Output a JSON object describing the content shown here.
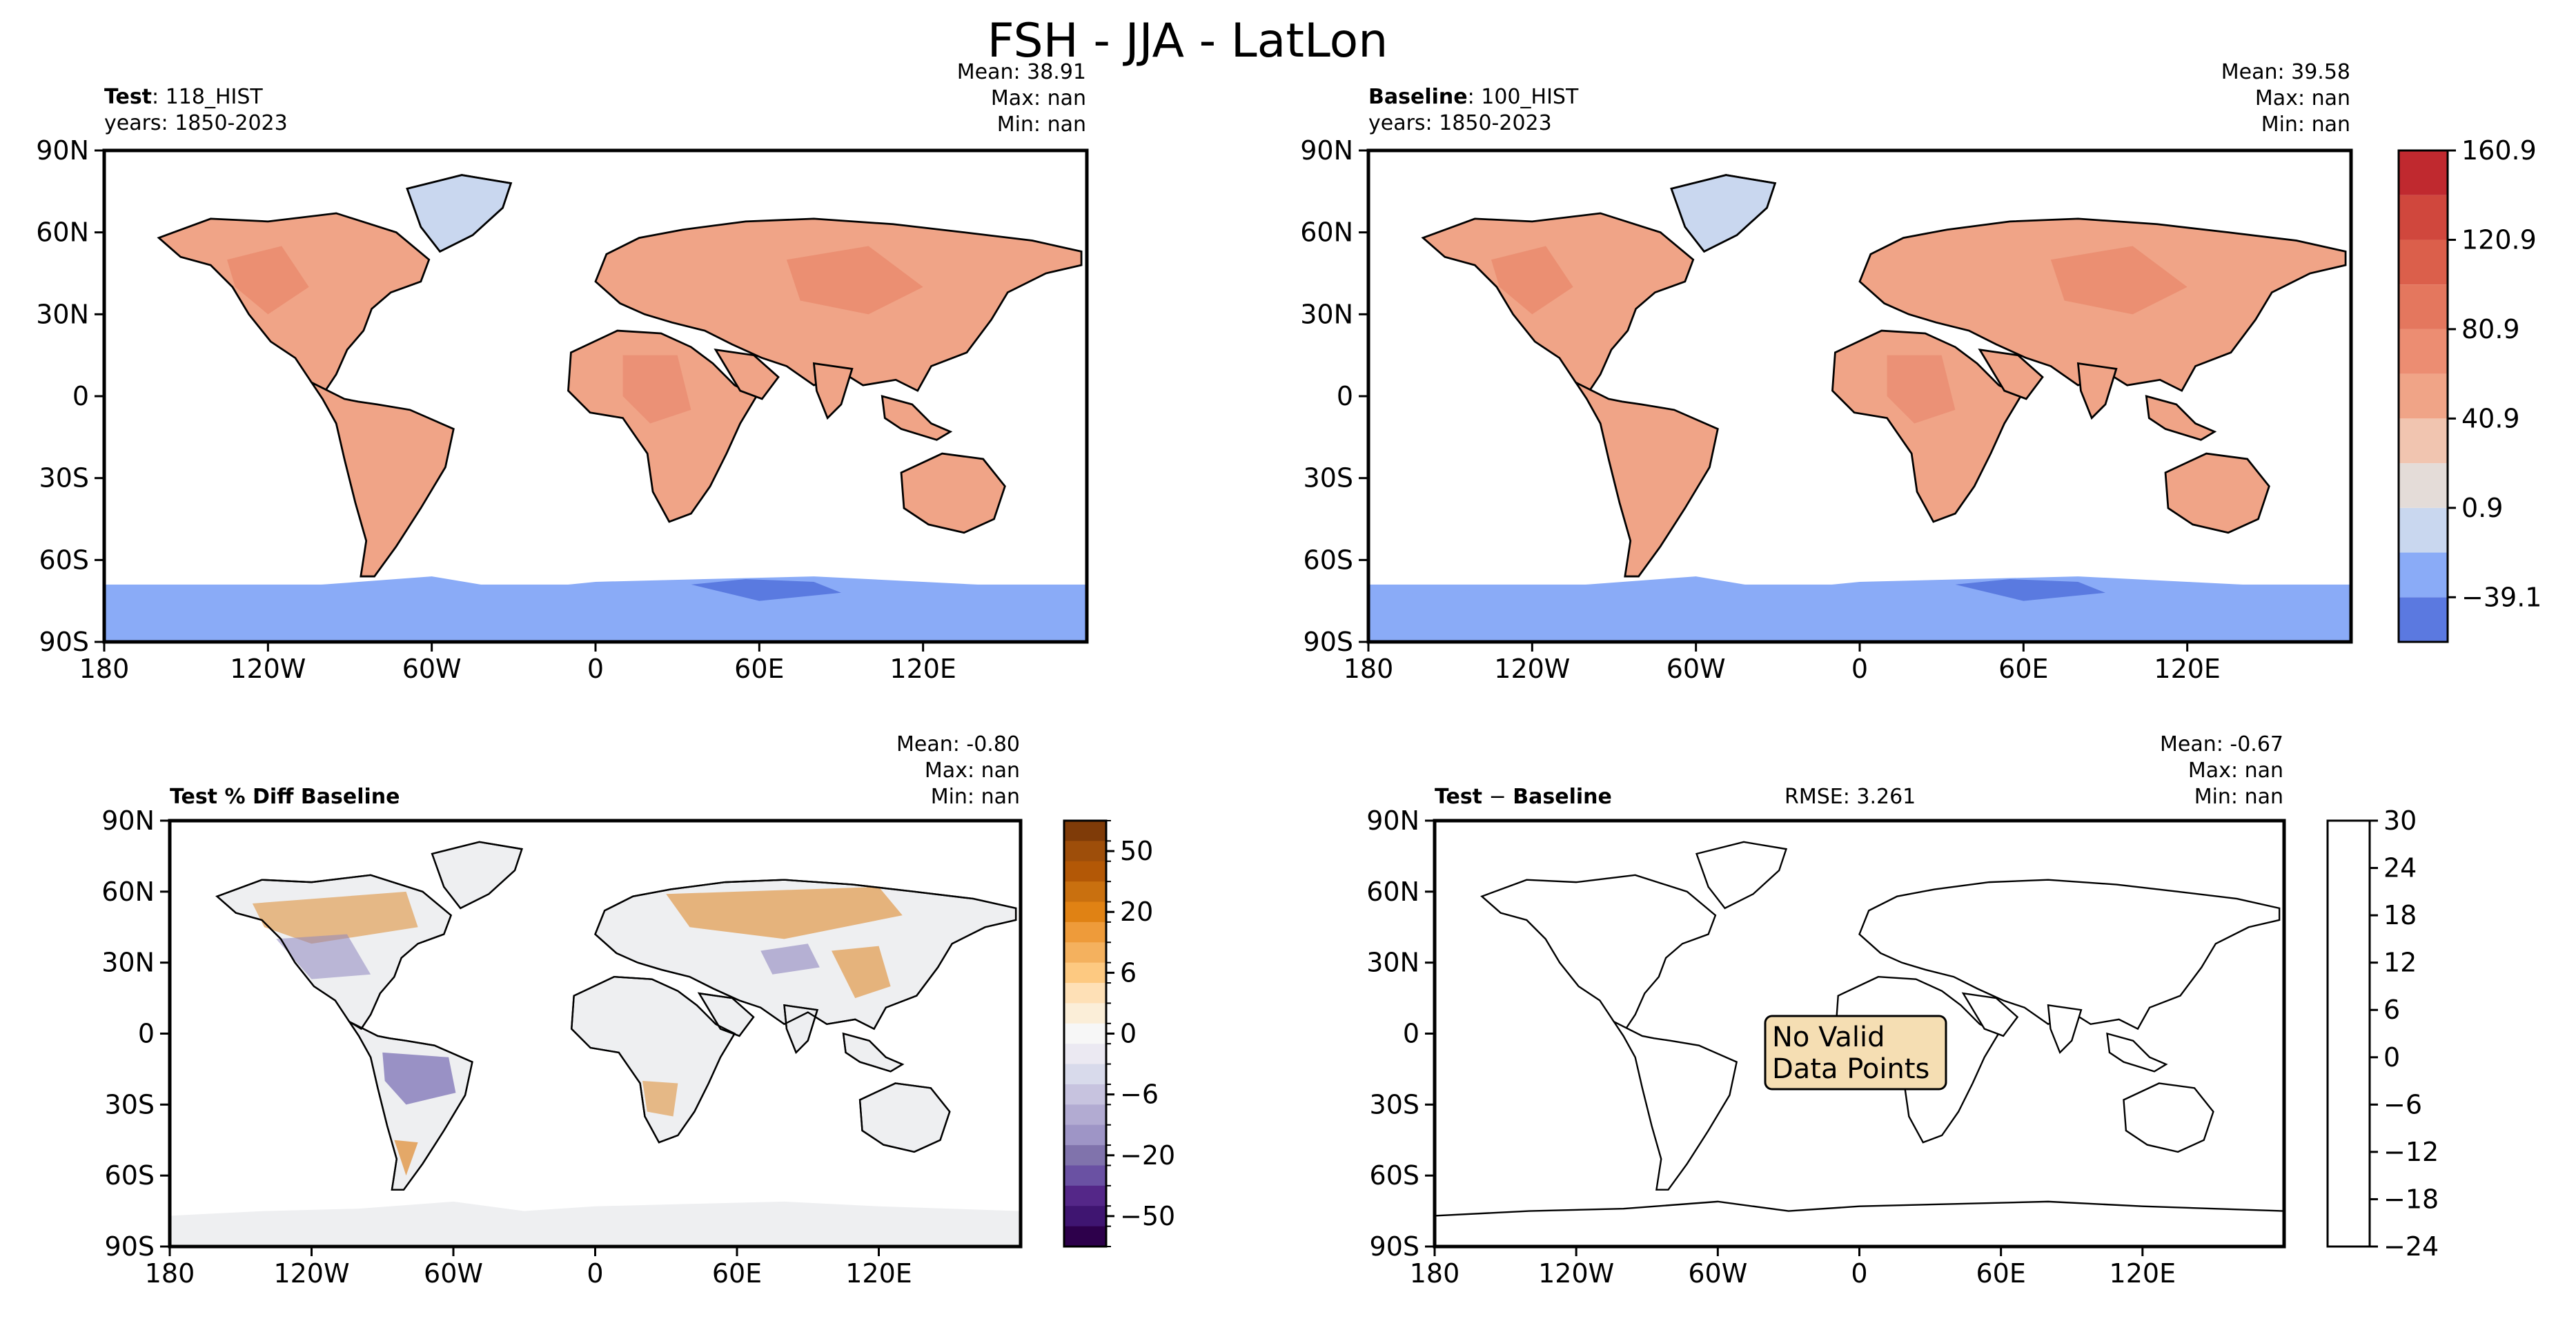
{
  "title": "FSH - JJA - LatLon",
  "x_ticks": [
    "180",
    "120W",
    "60W",
    "0",
    "60E",
    "120E"
  ],
  "y_ticks": [
    "90N",
    "60N",
    "30N",
    "0",
    "30S",
    "60S",
    "90S"
  ],
  "colors": {
    "ocean": "#ffffff",
    "coast": "#000000",
    "land_flux": "#f0a487",
    "land_flux_deep": "#e8866a",
    "greenland": "#c9d7ef",
    "antarctica": "#8aabf7",
    "antarctica_deep": "#5a7ae0",
    "diff_base": "#eeeff1",
    "diff_orange": "#df8a2e",
    "diff_purple": "#8f86c0",
    "nodata_box": "#f5deb3"
  },
  "panels": {
    "test": {
      "label_bold": "Test",
      "label_value": "118_HIST",
      "years": "years: 1850-2023",
      "mean": "Mean: 38.91",
      "max": "Max:   nan",
      "min": "Min:   nan"
    },
    "baseline": {
      "label_bold": "Baseline",
      "label_value": "100_HIST",
      "years": "years: 1850-2023",
      "mean": "Mean: 39.58",
      "max": "Max:   nan",
      "min": "Min:   nan"
    },
    "pct_diff": {
      "label": "Test % Diff Baseline",
      "mean": "Mean: -0.80",
      "max": "Max:   nan",
      "min": "Min:   nan"
    },
    "diff": {
      "label_bold_a": "Test",
      "label_sep": " − ",
      "label_bold_b": "Baseline",
      "rmse": "RMSE: 3.261",
      "mean": "Mean: -0.67",
      "max": "Max:   nan",
      "min": "Min:   nan",
      "no_data_line1": "No Valid",
      "no_data_line2": "Data Points"
    }
  },
  "chart_data": [
    {
      "type": "heatmap",
      "panel": "test",
      "title": "Test: 118_HIST",
      "x_ticks": [
        "180",
        "120W",
        "60W",
        "0",
        "60E",
        "120E"
      ],
      "y_ticks": [
        "90N",
        "60N",
        "30N",
        "0",
        "30S",
        "60S",
        "90S"
      ],
      "xlim": [
        -180,
        180
      ],
      "ylim": [
        -90,
        90
      ],
      "colorbar": "shared with baseline"
    },
    {
      "type": "heatmap",
      "panel": "baseline",
      "title": "Baseline: 100_HIST",
      "x_ticks": [
        "180",
        "120W",
        "60W",
        "0",
        "60E",
        "120E"
      ],
      "y_ticks": [
        "90N",
        "60N",
        "30N",
        "0",
        "30S",
        "60S",
        "90S"
      ],
      "xlim": [
        -180,
        180
      ],
      "ylim": [
        -90,
        90
      ],
      "colorbar": {
        "ticks": [
          "160.9",
          "120.9",
          "80.9",
          "40.9",
          "0.9",
          "−39.1"
        ],
        "tick_values": [
          160.9,
          120.9,
          80.9,
          40.9,
          0.9,
          -39.1
        ],
        "range": [
          -59.1,
          160.9
        ],
        "levels": [
          -59.1,
          -39.1,
          -19.1,
          0.9,
          20.9,
          40.9,
          60.9,
          80.9,
          100.9,
          120.9,
          140.9,
          160.9
        ],
        "colors": [
          "#5b79e0",
          "#8aabf7",
          "#c9d7ef",
          "#e4dcd8",
          "#f1c5b0",
          "#f0a487",
          "#ec8d72",
          "#e4775e",
          "#db5f4b",
          "#d0473d",
          "#c0292f"
        ]
      }
    },
    {
      "type": "heatmap",
      "panel": "pct_diff",
      "title": "Test % Diff Baseline",
      "x_ticks": [
        "180",
        "120W",
        "60W",
        "0",
        "60E",
        "120E"
      ],
      "y_ticks": [
        "90N",
        "60N",
        "30N",
        "0",
        "30S",
        "60S",
        "90S"
      ],
      "xlim": [
        -180,
        180
      ],
      "ylim": [
        -90,
        90
      ],
      "colorbar": {
        "ticks": [
          "50",
          "20",
          "6",
          "0",
          "−6",
          "−20",
          "−50"
        ],
        "tick_values": [
          50,
          20,
          6,
          0,
          -6,
          -20,
          -50
        ],
        "colors_top_to_bottom": [
          "#7f3b08",
          "#9e4e0a",
          "#b35806",
          "#c9700f",
          "#e08214",
          "#ee9b3a",
          "#f4b15e",
          "#fdc981",
          "#fee0b6",
          "#fbeed8",
          "#f7f7f7",
          "#ebe9f2",
          "#d8daeb",
          "#c7c3df",
          "#b2abd2",
          "#9e95c6",
          "#8073ac",
          "#6a51a3",
          "#542788",
          "#3f1571",
          "#2d004b"
        ]
      }
    },
    {
      "type": "heatmap",
      "panel": "diff",
      "title": "Test − Baseline",
      "x_ticks": [
        "180",
        "120W",
        "60W",
        "0",
        "60E",
        "120E"
      ],
      "y_ticks": [
        "90N",
        "60N",
        "30N",
        "0",
        "30S",
        "60S",
        "90S"
      ],
      "xlim": [
        -180,
        180
      ],
      "ylim": [
        -90,
        90
      ],
      "annotation": "No Valid Data Points",
      "colorbar": {
        "ticks": [
          "30",
          "24",
          "18",
          "12",
          "6",
          "0",
          "−6",
          "−12",
          "−18",
          "−24"
        ],
        "tick_values": [
          30,
          24,
          18,
          12,
          6,
          0,
          -6,
          -12,
          -18,
          -24
        ],
        "range": [
          -24,
          30
        ]
      }
    }
  ]
}
